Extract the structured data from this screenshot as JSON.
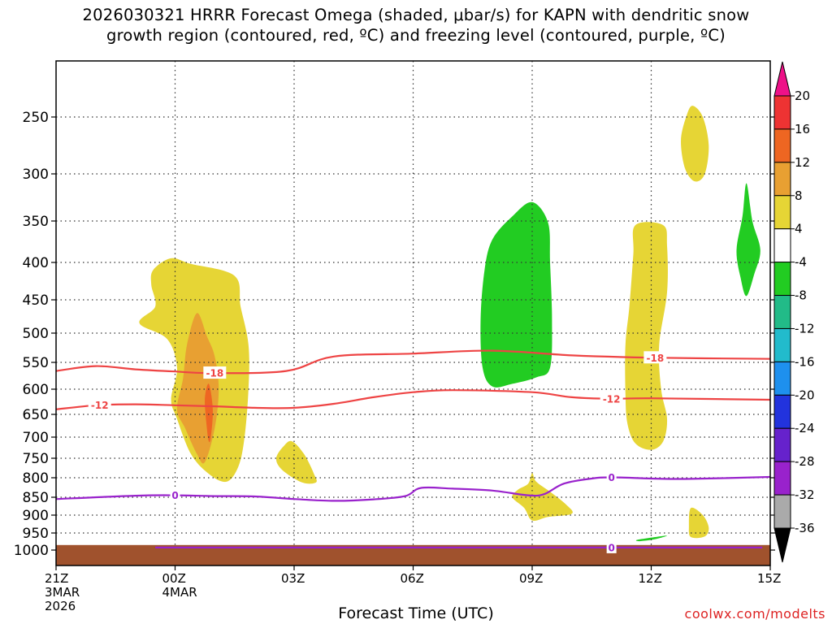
{
  "title": {
    "line1": "2026030321 HRRR Forecast Omega (shaded, μbar/s) for KAPN with dendritic snow",
    "line2": "growth region (contoured, red, ºC) and freezing level (contoured, purple, ºC)"
  },
  "x_axis_title": "Forecast Time (UTC)",
  "credit": "coolwx.com/modelts",
  "chart_data": {
    "type": "time-height cross-section",
    "x_ticks": [
      {
        "hour": 0,
        "label": "21Z",
        "sub1": "3MAR",
        "sub2": "2026"
      },
      {
        "hour": 3,
        "label": "00Z",
        "sub1": "4MAR",
        "sub2": ""
      },
      {
        "hour": 6,
        "label": "03Z",
        "sub1": "",
        "sub2": ""
      },
      {
        "hour": 9,
        "label": "06Z",
        "sub1": "",
        "sub2": ""
      },
      {
        "hour": 12,
        "label": "09Z",
        "sub1": "",
        "sub2": ""
      },
      {
        "hour": 15,
        "label": "12Z",
        "sub1": "",
        "sub2": ""
      },
      {
        "hour": 18,
        "label": "15Z",
        "sub1": "",
        "sub2": ""
      }
    ],
    "xlim_hours": [
      0,
      18
    ],
    "y_levels_hpa": [
      250,
      300,
      350,
      400,
      450,
      500,
      550,
      600,
      650,
      700,
      750,
      800,
      850,
      900,
      950,
      1000
    ],
    "ylim_hpa": [
      200,
      1030
    ],
    "colorbar": {
      "labels": [
        "20",
        "16",
        "12",
        "8",
        "4",
        "-4",
        "-8",
        "-12",
        "-16",
        "-20",
        "-24",
        "-28",
        "-32",
        "-36"
      ],
      "bands": [
        {
          "lo": 16,
          "hi": 20,
          "color": "#ee3333"
        },
        {
          "lo": 12,
          "hi": 16,
          "color": "#ee6622"
        },
        {
          "lo": 8,
          "hi": 12,
          "color": "#e8a032"
        },
        {
          "lo": 4,
          "hi": 8,
          "color": "#e6d535"
        },
        {
          "lo": -4,
          "hi": 4,
          "color": "#ffffff"
        },
        {
          "lo": -8,
          "hi": -4,
          "color": "#22cc22"
        },
        {
          "lo": -12,
          "hi": -8,
          "color": "#22bb88"
        },
        {
          "lo": -16,
          "hi": -12,
          "color": "#22bbcc"
        },
        {
          "lo": -20,
          "hi": -16,
          "color": "#1e90ee"
        },
        {
          "lo": -24,
          "hi": -20,
          "color": "#2233dd"
        },
        {
          "lo": -28,
          "hi": -24,
          "color": "#6622cc"
        },
        {
          "lo": -32,
          "hi": -28,
          "color": "#9922cc"
        },
        {
          "lo": -36,
          "hi": -32,
          "color": "#aaaaaa"
        }
      ],
      "top_arrow_color": "#ee1188",
      "bottom_arrow_color": "#000000"
    },
    "omega_shaded": [
      {
        "value_range": [
          4,
          8
        ],
        "color": "#e6d535",
        "points": [
          [
            2.45,
            410
          ],
          [
            2.9,
            395
          ],
          [
            3.4,
            402
          ],
          [
            4.5,
            418
          ],
          [
            4.65,
            460
          ],
          [
            4.85,
            520
          ],
          [
            4.85,
            600
          ],
          [
            4.75,
            700
          ],
          [
            4.6,
            770
          ],
          [
            4.3,
            810
          ],
          [
            3.85,
            790
          ],
          [
            3.4,
            740
          ],
          [
            3.05,
            660
          ],
          [
            2.9,
            620
          ],
          [
            3.05,
            560
          ],
          [
            2.8,
            510
          ],
          [
            2.1,
            485
          ],
          [
            2.5,
            460
          ],
          [
            2.4,
            430
          ]
        ]
      },
      {
        "value_range": [
          8,
          12
        ],
        "color": "#e8a032",
        "points": [
          [
            3.55,
            470
          ],
          [
            3.8,
            505
          ],
          [
            4.0,
            540
          ],
          [
            4.1,
            600
          ],
          [
            4.0,
            680
          ],
          [
            3.75,
            760
          ],
          [
            3.55,
            740
          ],
          [
            3.25,
            680
          ],
          [
            3.05,
            640
          ],
          [
            3.2,
            580
          ],
          [
            3.3,
            520
          ]
        ]
      },
      {
        "value_range": [
          12,
          16
        ],
        "color": "#ee6622",
        "points": [
          [
            3.85,
            590
          ],
          [
            3.95,
            640
          ],
          [
            3.9,
            700
          ],
          [
            3.85,
            710
          ],
          [
            3.8,
            680
          ],
          [
            3.75,
            620
          ]
        ]
      },
      {
        "value_range": [
          4,
          8
        ],
        "color": "#e6d535",
        "points": [
          [
            5.95,
            710
          ],
          [
            6.25,
            740
          ],
          [
            6.5,
            790
          ],
          [
            6.55,
            812
          ],
          [
            6.2,
            812
          ],
          [
            5.7,
            780
          ],
          [
            5.55,
            750
          ],
          [
            5.75,
            720
          ]
        ]
      },
      {
        "value_range": [
          4,
          8
        ],
        "color": "#e6d535",
        "points": [
          [
            12.0,
            788
          ],
          [
            12.1,
            810
          ],
          [
            12.45,
            836
          ],
          [
            12.85,
            870
          ],
          [
            13.0,
            896
          ],
          [
            12.4,
            905
          ],
          [
            12.0,
            915
          ],
          [
            11.8,
            880
          ],
          [
            11.5,
            850
          ],
          [
            11.65,
            830
          ],
          [
            11.9,
            815
          ]
        ]
      },
      {
        "value_range": [
          4,
          8
        ],
        "color": "#e6d535",
        "points": [
          [
            14.6,
            355
          ],
          [
            15.3,
            355
          ],
          [
            15.4,
            380
          ],
          [
            15.4,
            440
          ],
          [
            15.2,
            520
          ],
          [
            15.25,
            600
          ],
          [
            15.4,
            660
          ],
          [
            15.3,
            710
          ],
          [
            15.0,
            730
          ],
          [
            14.6,
            715
          ],
          [
            14.4,
            670
          ],
          [
            14.35,
            610
          ],
          [
            14.35,
            520
          ],
          [
            14.45,
            460
          ],
          [
            14.55,
            390
          ]
        ]
      },
      {
        "value_range": [
          4,
          8
        ],
        "color": "#e6d535",
        "points": [
          [
            16.05,
            240
          ],
          [
            16.3,
            250
          ],
          [
            16.45,
            275
          ],
          [
            16.35,
            300
          ],
          [
            16.1,
            308
          ],
          [
            15.85,
            295
          ],
          [
            15.75,
            270
          ],
          [
            15.9,
            248
          ]
        ]
      },
      {
        "value_range": [
          4,
          8
        ],
        "color": "#e6d535",
        "points": [
          [
            16.0,
            880
          ],
          [
            16.3,
            900
          ],
          [
            16.45,
            935
          ],
          [
            16.35,
            960
          ],
          [
            16.0,
            962
          ],
          [
            15.95,
            930
          ]
        ]
      },
      {
        "value_range": [
          -8,
          -4
        ],
        "color": "#22cc22",
        "points": [
          [
            12.0,
            330
          ],
          [
            12.4,
            352
          ],
          [
            12.45,
            400
          ],
          [
            12.5,
            480
          ],
          [
            12.45,
            560
          ],
          [
            12.1,
            578
          ],
          [
            11.5,
            590
          ],
          [
            11.0,
            595
          ],
          [
            10.75,
            560
          ],
          [
            10.7,
            480
          ],
          [
            10.8,
            410
          ],
          [
            11.0,
            372
          ],
          [
            11.5,
            345
          ]
        ]
      },
      {
        "value_range": [
          -8,
          -4
        ],
        "color": "#22cc22",
        "points": [
          [
            17.4,
            310
          ],
          [
            17.55,
            350
          ],
          [
            17.75,
            385
          ],
          [
            17.6,
            415
          ],
          [
            17.4,
            445
          ],
          [
            17.25,
            420
          ],
          [
            17.15,
            385
          ],
          [
            17.3,
            345
          ]
        ]
      },
      {
        "value_range": [
          -8,
          -4
        ],
        "color": "#22cc22",
        "points": [
          [
            14.65,
            970
          ],
          [
            15.1,
            962
          ],
          [
            15.4,
            958
          ],
          [
            15.1,
            968
          ],
          [
            14.7,
            974
          ]
        ]
      }
    ],
    "contours": [
      {
        "name": "dgz-minus-18",
        "value": -18,
        "label": "-18",
        "color": "#ee4444",
        "points": [
          [
            0,
            566
          ],
          [
            1,
            557
          ],
          [
            2,
            563
          ],
          [
            3,
            567
          ],
          [
            3.9,
            570
          ],
          [
            5.8,
            566
          ],
          [
            7,
            540
          ],
          [
            9,
            535
          ],
          [
            11,
            530
          ],
          [
            13,
            538
          ],
          [
            15,
            542
          ],
          [
            18,
            544
          ]
        ],
        "label_hours": [
          4.0,
          15.1
        ]
      },
      {
        "name": "dgz-minus-12",
        "value": -12,
        "label": "-12",
        "color": "#ee4444",
        "points": [
          [
            0,
            640
          ],
          [
            1,
            632
          ],
          [
            2,
            630
          ],
          [
            3,
            632
          ],
          [
            4,
            634
          ],
          [
            5,
            637
          ],
          [
            6,
            637
          ],
          [
            7,
            629
          ],
          [
            8,
            616
          ],
          [
            9,
            606
          ],
          [
            10,
            602
          ],
          [
            12,
            606
          ],
          [
            13,
            616
          ],
          [
            14,
            619
          ],
          [
            15,
            618
          ],
          [
            18,
            621
          ]
        ],
        "label_hours": [
          1.1,
          14.0
        ]
      },
      {
        "name": "freezing-level-0",
        "value": 0,
        "label": "0",
        "color": "#9922cc",
        "points": [
          [
            0,
            855
          ],
          [
            2,
            846
          ],
          [
            3,
            845
          ],
          [
            4,
            847
          ],
          [
            5,
            848
          ],
          [
            6,
            855
          ],
          [
            7,
            860
          ],
          [
            8,
            856
          ],
          [
            8.8,
            847
          ],
          [
            9.2,
            826
          ],
          [
            10,
            828
          ],
          [
            11,
            833
          ],
          [
            11.9,
            845
          ],
          [
            12.3,
            842
          ],
          [
            12.8,
            815
          ],
          [
            13.5,
            802
          ],
          [
            14,
            799
          ],
          [
            15,
            802
          ],
          [
            16,
            803
          ],
          [
            18,
            798
          ]
        ],
        "label_hours": [
          3.0,
          14.0
        ]
      }
    ],
    "terrain_color": "#a0522d",
    "surface_pressure_hpa": 990
  }
}
